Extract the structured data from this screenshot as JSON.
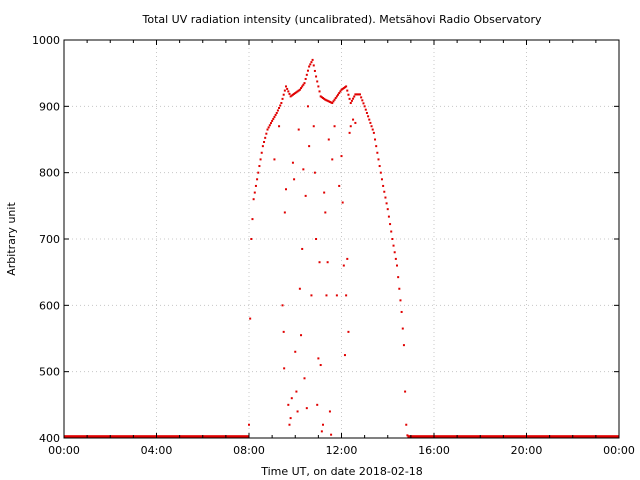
{
  "chart_data": {
    "type": "scatter",
    "title": "Total UV radiation intensity (uncalibrated). Metsähovi Radio Observatory",
    "xlabel": "Time UT, on date 2018-02-18",
    "ylabel": "Arbitrary unit",
    "xlim": [
      0,
      24
    ],
    "ylim": [
      400,
      1000
    ],
    "x_ticks": [
      {
        "value": 0,
        "label": "00:00"
      },
      {
        "value": 4,
        "label": "04:00"
      },
      {
        "value": 8,
        "label": "08:00"
      },
      {
        "value": 12,
        "label": "12:00"
      },
      {
        "value": 16,
        "label": "16:00"
      },
      {
        "value": 20,
        "label": "20:00"
      },
      {
        "value": 24,
        "label": "00:00"
      }
    ],
    "y_ticks": [
      {
        "value": 400,
        "label": "400"
      },
      {
        "value": 500,
        "label": "500"
      },
      {
        "value": 600,
        "label": "600"
      },
      {
        "value": 700,
        "label": "700"
      },
      {
        "value": 800,
        "label": "800"
      },
      {
        "value": 900,
        "label": "900"
      },
      {
        "value": 1000,
        "label": "1000"
      }
    ],
    "grid": true,
    "series_color": "#e00000",
    "series": [
      {
        "name": "",
        "envelope": [
          [
            8.0,
            420
          ],
          [
            8.05,
            580
          ],
          [
            8.1,
            700
          ],
          [
            8.2,
            760
          ],
          [
            8.4,
            800
          ],
          [
            8.6,
            840
          ],
          [
            8.8,
            865
          ],
          [
            9.0,
            878
          ],
          [
            9.2,
            890
          ],
          [
            9.4,
            905
          ],
          [
            9.6,
            930
          ],
          [
            9.8,
            915
          ],
          [
            10.0,
            920
          ],
          [
            10.2,
            925
          ],
          [
            10.4,
            935
          ],
          [
            10.6,
            960
          ],
          [
            10.75,
            970
          ],
          [
            10.9,
            945
          ],
          [
            11.1,
            915
          ],
          [
            11.3,
            910
          ],
          [
            11.6,
            905
          ],
          [
            11.8,
            915
          ],
          [
            12.0,
            925
          ],
          [
            12.2,
            930
          ],
          [
            12.4,
            905
          ],
          [
            12.6,
            918
          ],
          [
            12.8,
            918
          ],
          [
            13.0,
            900
          ],
          [
            13.2,
            880
          ],
          [
            13.4,
            860
          ],
          [
            13.6,
            820
          ],
          [
            13.8,
            780
          ],
          [
            14.0,
            745
          ],
          [
            14.2,
            700
          ],
          [
            14.4,
            660
          ],
          [
            14.6,
            590
          ],
          [
            14.7,
            540
          ],
          [
            14.75,
            470
          ],
          [
            14.8,
            420
          ],
          [
            14.85,
            404
          ]
        ],
        "scattered": [
          [
            9.1,
            820
          ],
          [
            9.3,
            870
          ],
          [
            9.45,
            600
          ],
          [
            9.5,
            560
          ],
          [
            9.52,
            505
          ],
          [
            9.55,
            740
          ],
          [
            9.6,
            775
          ],
          [
            9.7,
            450
          ],
          [
            9.75,
            420
          ],
          [
            9.8,
            430
          ],
          [
            9.85,
            460
          ],
          [
            9.9,
            815
          ],
          [
            9.95,
            790
          ],
          [
            10.0,
            530
          ],
          [
            10.05,
            470
          ],
          [
            10.1,
            440
          ],
          [
            10.15,
            865
          ],
          [
            10.2,
            625
          ],
          [
            10.25,
            555
          ],
          [
            10.3,
            685
          ],
          [
            10.35,
            805
          ],
          [
            10.4,
            490
          ],
          [
            10.45,
            765
          ],
          [
            10.5,
            445
          ],
          [
            10.55,
            900
          ],
          [
            10.6,
            840
          ],
          [
            10.7,
            615
          ],
          [
            10.8,
            870
          ],
          [
            10.85,
            800
          ],
          [
            10.9,
            700
          ],
          [
            10.95,
            450
          ],
          [
            11.0,
            520
          ],
          [
            11.05,
            665
          ],
          [
            11.1,
            510
          ],
          [
            11.15,
            410
          ],
          [
            11.2,
            420
          ],
          [
            11.25,
            770
          ],
          [
            11.3,
            740
          ],
          [
            11.35,
            615
          ],
          [
            11.4,
            665
          ],
          [
            11.45,
            850
          ],
          [
            11.5,
            440
          ],
          [
            11.55,
            405
          ],
          [
            11.6,
            820
          ],
          [
            11.7,
            870
          ],
          [
            11.8,
            615
          ],
          [
            11.9,
            780
          ],
          [
            12.0,
            825
          ],
          [
            12.05,
            755
          ],
          [
            12.1,
            660
          ],
          [
            12.15,
            525
          ],
          [
            12.2,
            615
          ],
          [
            12.25,
            670
          ],
          [
            12.3,
            560
          ],
          [
            12.35,
            860
          ],
          [
            12.4,
            870
          ],
          [
            12.5,
            880
          ],
          [
            12.6,
            875
          ]
        ],
        "baseline_value": 402,
        "baseline_ranges": [
          [
            0,
            8.0
          ],
          [
            14.85,
            24
          ]
        ]
      }
    ]
  }
}
